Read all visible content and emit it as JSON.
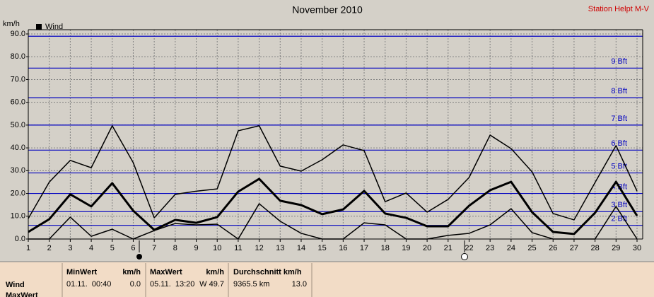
{
  "chart_data": {
    "type": "line",
    "title": "November 2010",
    "station": "Station Helpt M-V",
    "y_label": "km/h",
    "legend": "Wind",
    "legend_color": "#000000",
    "x": [
      1,
      2,
      3,
      4,
      5,
      6,
      7,
      8,
      9,
      10,
      11,
      12,
      13,
      14,
      15,
      16,
      17,
      18,
      19,
      20,
      21,
      22,
      23,
      24,
      25,
      26,
      27,
      28,
      29,
      30
    ],
    "xlim": [
      1,
      30
    ],
    "xticks": [
      1,
      2,
      3,
      4,
      5,
      6,
      7,
      8,
      9,
      10,
      11,
      12,
      13,
      14,
      15,
      16,
      17,
      18,
      19,
      20,
      21,
      22,
      23,
      24,
      25,
      26,
      27,
      28,
      29,
      30
    ],
    "ylim": [
      0,
      90
    ],
    "yticks": [
      {
        "value": 0,
        "label": "0.0"
      },
      {
        "value": 10,
        "label": "10.0"
      },
      {
        "value": 20,
        "label": "20.0"
      },
      {
        "value": 30,
        "label": "30.0"
      },
      {
        "value": 40,
        "label": "40.0"
      },
      {
        "value": 50,
        "label": "50.0"
      },
      {
        "value": 60,
        "label": "60.0"
      },
      {
        "value": 70,
        "label": "70.0"
      },
      {
        "value": 80,
        "label": "80.0"
      },
      {
        "value": 90,
        "label": "90.0"
      }
    ],
    "grid": true,
    "beaufort_color": "#0000c0",
    "beaufort": [
      {
        "value": 6,
        "label": "2 Bft"
      },
      {
        "value": 12,
        "label": "3 Bft"
      },
      {
        "value": 20,
        "label": "4 Bft"
      },
      {
        "value": 29,
        "label": "5 Bft"
      },
      {
        "value": 39,
        "label": "6 Bft"
      },
      {
        "value": 50,
        "label": "7 Bft"
      },
      {
        "value": 62,
        "label": "8 Bft"
      },
      {
        "value": 75,
        "label": "9 Bft"
      },
      {
        "value": 89,
        "label": null
      }
    ],
    "series": [
      {
        "color": "#000000",
        "line_width": 1.5,
        "values": [
          9,
          25,
          34.5,
          31.3,
          49.7,
          33.5,
          9.3,
          19.6,
          21,
          22,
          47.5,
          49.7,
          32,
          29.8,
          34.8,
          41.3,
          38.8,
          16.4,
          20.2,
          11.8,
          17.4,
          27,
          45.6,
          39.7,
          29.5,
          11.2,
          8.4,
          24.8,
          41,
          21
        ]
      },
      {
        "color": "#000000",
        "line_width": 3,
        "values": [
          3.1,
          8.7,
          19.6,
          14.3,
          24.5,
          12.4,
          4,
          8.4,
          7.1,
          9.6,
          20.8,
          26.4,
          16.8,
          14.9,
          10.9,
          13,
          21.1,
          11.2,
          9.3,
          5.6,
          5.6,
          14.6,
          21.4,
          25.1,
          11.8,
          3.1,
          2.2,
          11.5,
          25.1,
          10.2
        ]
      },
      {
        "color": "#000000",
        "line_width": 1.5,
        "values": [
          0,
          0,
          9.6,
          1.2,
          4.3,
          0,
          3.7,
          6.8,
          6.2,
          6.5,
          0,
          15.5,
          7.8,
          2.5,
          0,
          0,
          7.1,
          6.2,
          0,
          0,
          1.6,
          2.5,
          6.2,
          13.3,
          2.8,
          0,
          0,
          0,
          14.3,
          0
        ]
      }
    ]
  },
  "summary": {
    "row_labels": [
      "Wind",
      "MaxWert"
    ],
    "columns": [
      {
        "title": "MinWert",
        "unit": "km/h",
        "time": "01.11.  00:40",
        "value": "0.0"
      },
      {
        "title": "MaxWert",
        "unit": "km/h",
        "time": "05.11.  13:20",
        "value": "W 49.7"
      },
      {
        "title": "Durchschnitt km/h",
        "time": "9365.5 km",
        "value": "13.0"
      }
    ]
  }
}
